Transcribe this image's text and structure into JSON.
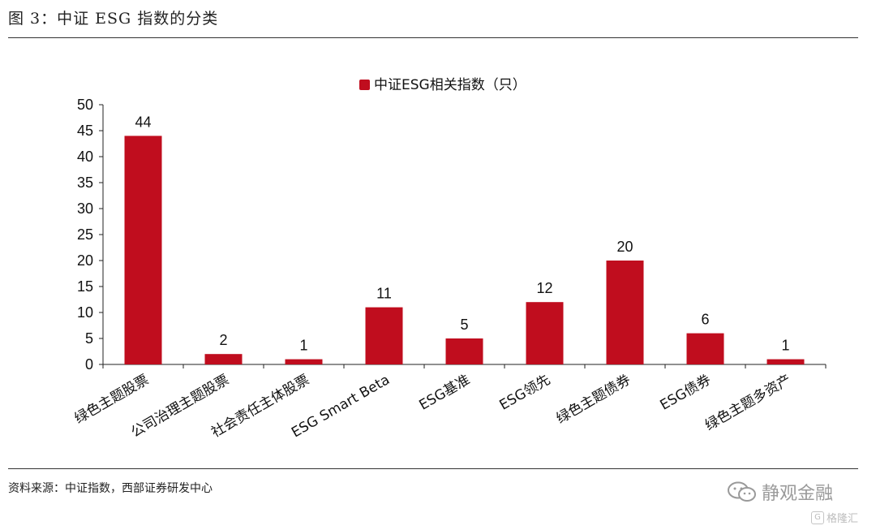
{
  "figure_title": "图 3：中证 ESG 指数的分类",
  "source_note": "资料来源：中证指数，西部证券研发中心",
  "watermark": {
    "text": "静观金融",
    "icon": "wechat-icon"
  },
  "corner_mark": {
    "text": "格隆汇",
    "icon": "gelonghui-logo-icon"
  },
  "colors": {
    "bar": "#C00D1E",
    "axis": "#222222",
    "rule": "#333333"
  },
  "chart_data": {
    "type": "bar",
    "categories": [
      "绿色主题股票",
      "公司治理主题股票",
      "社会责任主体股票",
      "ESG Smart Beta",
      "ESG基准",
      "ESG领先",
      "绿色主题债券",
      "ESG债券",
      "绿色主题多资产"
    ],
    "series": [
      {
        "name": "中证ESG相关指数（只）",
        "values": [
          44,
          2,
          1,
          11,
          5,
          12,
          20,
          6,
          1
        ]
      }
    ],
    "ylim": [
      0,
      50
    ],
    "yticks": [
      0,
      5,
      10,
      15,
      20,
      25,
      30,
      35,
      40,
      45,
      50
    ],
    "data_labels": true,
    "legend_position": "top-center",
    "grid": false,
    "xlabel": "",
    "ylabel": ""
  }
}
